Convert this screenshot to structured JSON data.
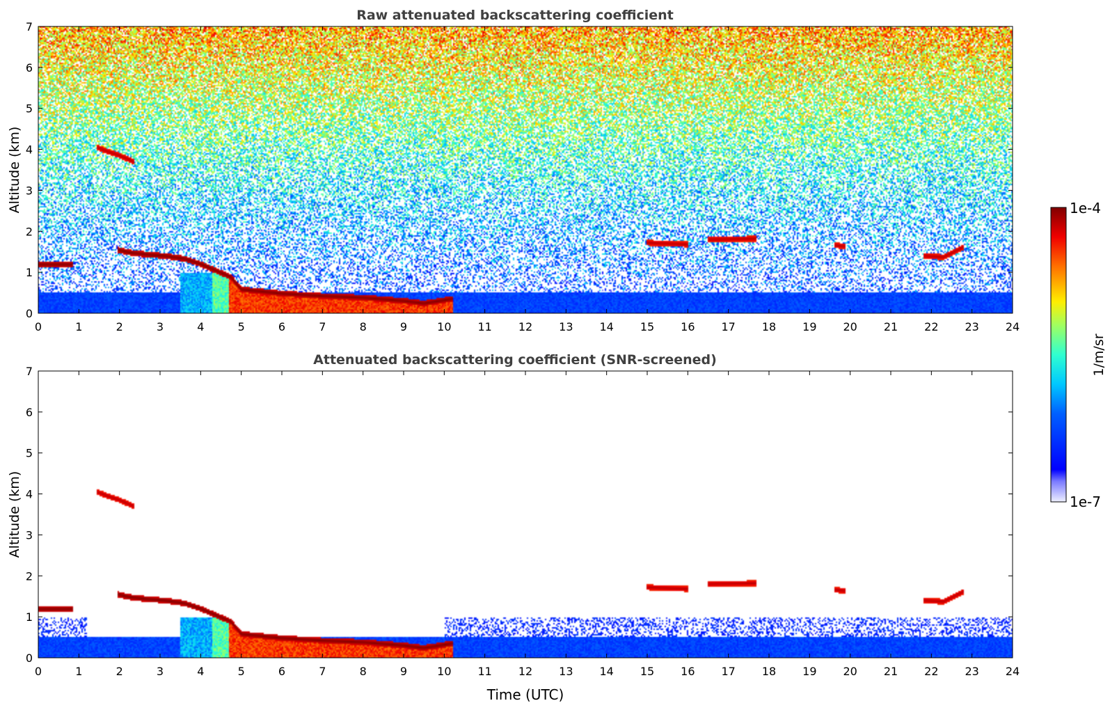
{
  "chart_data": [
    {
      "type": "heatmap",
      "title": "Raw attenuated backscattering coefficient",
      "xlabel": "",
      "ylabel": "Altitude (km)",
      "xlim": [
        0,
        24
      ],
      "ylim": [
        0,
        7
      ],
      "xticks": [
        "0",
        "1",
        "2",
        "3",
        "4",
        "5",
        "6",
        "7",
        "8",
        "9",
        "10",
        "11",
        "12",
        "13",
        "14",
        "15",
        "16",
        "17",
        "18",
        "19",
        "20",
        "21",
        "22",
        "23",
        "24"
      ],
      "yticks": [
        "0",
        "1",
        "2",
        "3",
        "4",
        "5",
        "6",
        "7"
      ],
      "screened": false,
      "layers": [
        {
          "kind": "cloud",
          "points": [
            [
              0.0,
              1.19
            ],
            [
              0.85,
              1.19
            ]
          ],
          "level": 1.0
        },
        {
          "kind": "cloud",
          "points": [
            [
              1.45,
              4.05
            ],
            [
              1.7,
              3.95
            ],
            [
              2.0,
              3.85
            ],
            [
              2.35,
              3.7
            ]
          ],
          "level": 0.95
        },
        {
          "kind": "cloud",
          "points": [
            [
              1.95,
              1.55
            ],
            [
              2.25,
              1.48
            ],
            [
              2.7,
              1.43
            ],
            [
              3.1,
              1.4
            ],
            [
              3.6,
              1.33
            ],
            [
              4.0,
              1.2
            ],
            [
              4.4,
              1.03
            ],
            [
              4.75,
              0.88
            ],
            [
              5.0,
              0.58
            ],
            [
              6.0,
              0.48
            ],
            [
              7.0,
              0.42
            ],
            [
              8.0,
              0.38
            ],
            [
              9.0,
              0.3
            ],
            [
              9.5,
              0.24
            ],
            [
              10.2,
              0.35
            ]
          ],
          "level": 1.0
        },
        {
          "kind": "cloud",
          "points": [
            [
              15.0,
              1.72
            ],
            [
              16.0,
              1.68
            ]
          ],
          "level": 0.95
        },
        {
          "kind": "cloud",
          "points": [
            [
              16.5,
              1.8
            ],
            [
              17.7,
              1.82
            ]
          ],
          "level": 0.95
        },
        {
          "kind": "cloud",
          "points": [
            [
              19.6,
              1.66
            ],
            [
              19.9,
              1.63
            ]
          ],
          "level": 0.95
        },
        {
          "kind": "cloud",
          "points": [
            [
              21.8,
              1.4
            ],
            [
              22.3,
              1.37
            ],
            [
              22.8,
              1.62
            ]
          ],
          "level": 0.95
        }
      ],
      "fog_region": {
        "x": [
          4.7,
          10.2
        ],
        "top_km": 0.58,
        "level": 0.85
      },
      "colorbar": {
        "min_label": "1e-7",
        "max_label": "1e-4",
        "label": "1/m/sr"
      }
    },
    {
      "type": "heatmap",
      "title": "Attenuated backscattering coefficient (SNR-screened)",
      "xlabel": "Time (UTC)",
      "ylabel": "Altitude (km)",
      "xlim": [
        0,
        24
      ],
      "ylim": [
        0,
        7
      ],
      "xticks": [
        "0",
        "1",
        "2",
        "3",
        "4",
        "5",
        "6",
        "7",
        "8",
        "9",
        "10",
        "11",
        "12",
        "13",
        "14",
        "15",
        "16",
        "17",
        "18",
        "19",
        "20",
        "21",
        "22",
        "23",
        "24"
      ],
      "yticks": [
        "0",
        "1",
        "2",
        "3",
        "4",
        "5",
        "6",
        "7"
      ],
      "screened": true,
      "layers": [
        {
          "kind": "cloud",
          "points": [
            [
              0.0,
              1.19
            ],
            [
              0.85,
              1.19
            ]
          ],
          "level": 1.0
        },
        {
          "kind": "cloud",
          "points": [
            [
              1.45,
              4.05
            ],
            [
              1.7,
              3.95
            ],
            [
              2.0,
              3.85
            ],
            [
              2.35,
              3.7
            ]
          ],
          "level": 0.95
        },
        {
          "kind": "cloud",
          "points": [
            [
              1.95,
              1.55
            ],
            [
              2.25,
              1.48
            ],
            [
              2.7,
              1.43
            ],
            [
              3.1,
              1.4
            ],
            [
              3.6,
              1.33
            ],
            [
              4.0,
              1.2
            ],
            [
              4.4,
              1.03
            ],
            [
              4.75,
              0.88
            ],
            [
              5.0,
              0.58
            ],
            [
              6.0,
              0.48
            ],
            [
              7.0,
              0.42
            ],
            [
              8.0,
              0.38
            ],
            [
              9.0,
              0.3
            ],
            [
              9.5,
              0.24
            ],
            [
              10.2,
              0.35
            ]
          ],
          "level": 1.0
        },
        {
          "kind": "cloud",
          "points": [
            [
              15.0,
              1.72
            ],
            [
              16.0,
              1.68
            ]
          ],
          "level": 0.95
        },
        {
          "kind": "cloud",
          "points": [
            [
              16.5,
              1.8
            ],
            [
              17.7,
              1.82
            ]
          ],
          "level": 0.95
        },
        {
          "kind": "cloud",
          "points": [
            [
              19.6,
              1.66
            ],
            [
              19.9,
              1.63
            ]
          ],
          "level": 0.95
        },
        {
          "kind": "cloud",
          "points": [
            [
              21.8,
              1.4
            ],
            [
              22.3,
              1.37
            ],
            [
              22.8,
              1.62
            ]
          ],
          "level": 0.95
        }
      ],
      "fog_region": {
        "x": [
          4.7,
          10.2
        ],
        "top_km": 0.58,
        "level": 0.85
      }
    }
  ],
  "colorbar": {
    "min_label": "1e-7",
    "max_label": "1e-4",
    "label": "1/m/sr"
  }
}
